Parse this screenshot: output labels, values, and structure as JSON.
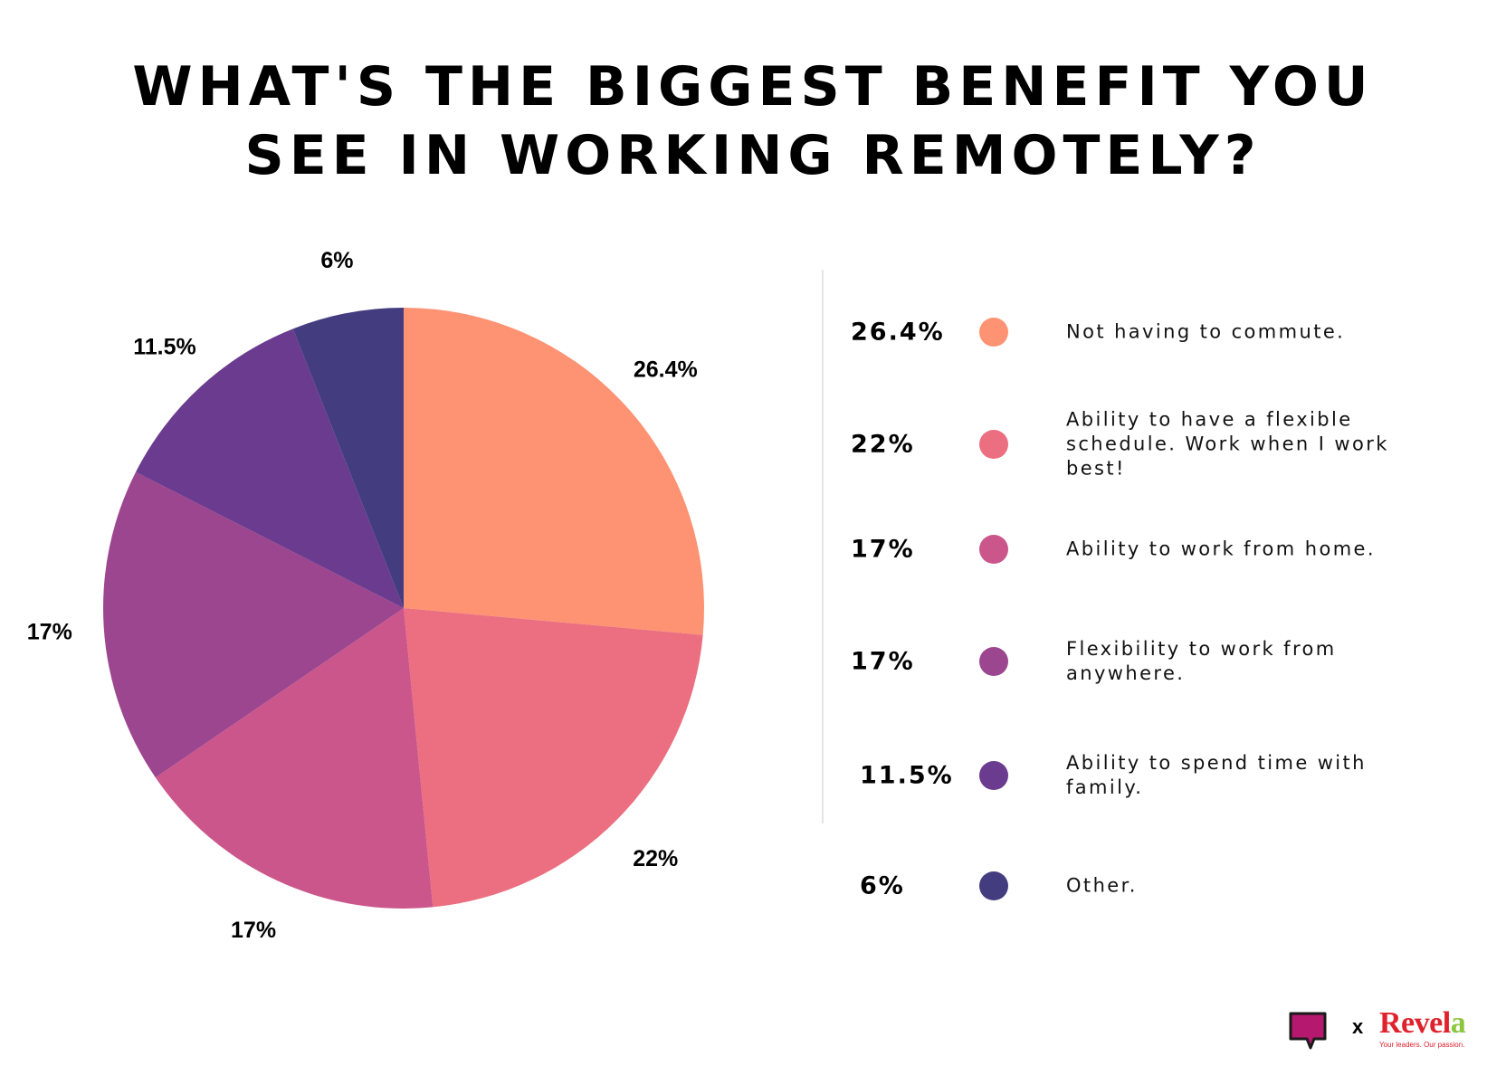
{
  "title_lines": [
    "WHAT'S THE BIGGEST BENEFIT YOU",
    "SEE IN WORKING REMOTELY?"
  ],
  "chart_data": {
    "type": "pie",
    "title": "WHAT'S THE BIGGEST BENEFIT YOU SEE IN WORKING REMOTELY?",
    "start": "12 o'clock, clockwise",
    "slices": [
      {
        "label": "Not having to commute.",
        "value": 26.4,
        "display": "26.4%",
        "color": "#fe9373"
      },
      {
        "label": "Ability to have a flexible schedule. Work when I work best!",
        "value": 22,
        "display": "22%",
        "color": "#eb6f80"
      },
      {
        "label": "Ability to work from home.",
        "value": 17,
        "display": "17%",
        "color": "#cb568b"
      },
      {
        "label": "Flexibility to work from anywhere.",
        "value": 17,
        "display": "17%",
        "color": "#9c4690"
      },
      {
        "label": "Ability to spend time with family.",
        "value": 11.5,
        "display": "11.5%",
        "color": "#6a3b8e"
      },
      {
        "label": "Other.",
        "value": 6,
        "display": "6%",
        "color": "#433d80"
      }
    ]
  },
  "legend": [
    {
      "value": "26.4%",
      "label": "Not having to commute.",
      "color": "#fe9373"
    },
    {
      "value": "22%",
      "label": "Ability to have a flexible schedule. Work when I work best!",
      "color": "#eb6f80"
    },
    {
      "value": "17%",
      "label": "Ability to work from home.",
      "color": "#cb568b"
    },
    {
      "value": "17%",
      "label": "Flexibility to work from anywhere.",
      "color": "#9c4690"
    },
    {
      "value": "11.5%",
      "label": "Ability to spend time with family.",
      "color": "#6a3b8e"
    },
    {
      "value": "6%",
      "label": "Other.",
      "color": "#433d80"
    }
  ],
  "footer": {
    "separator": "x",
    "brand_main": "Revel",
    "brand_accent": "a",
    "tagline": "Your leaders. Our passion.",
    "bubble_color": "#b5186f"
  }
}
